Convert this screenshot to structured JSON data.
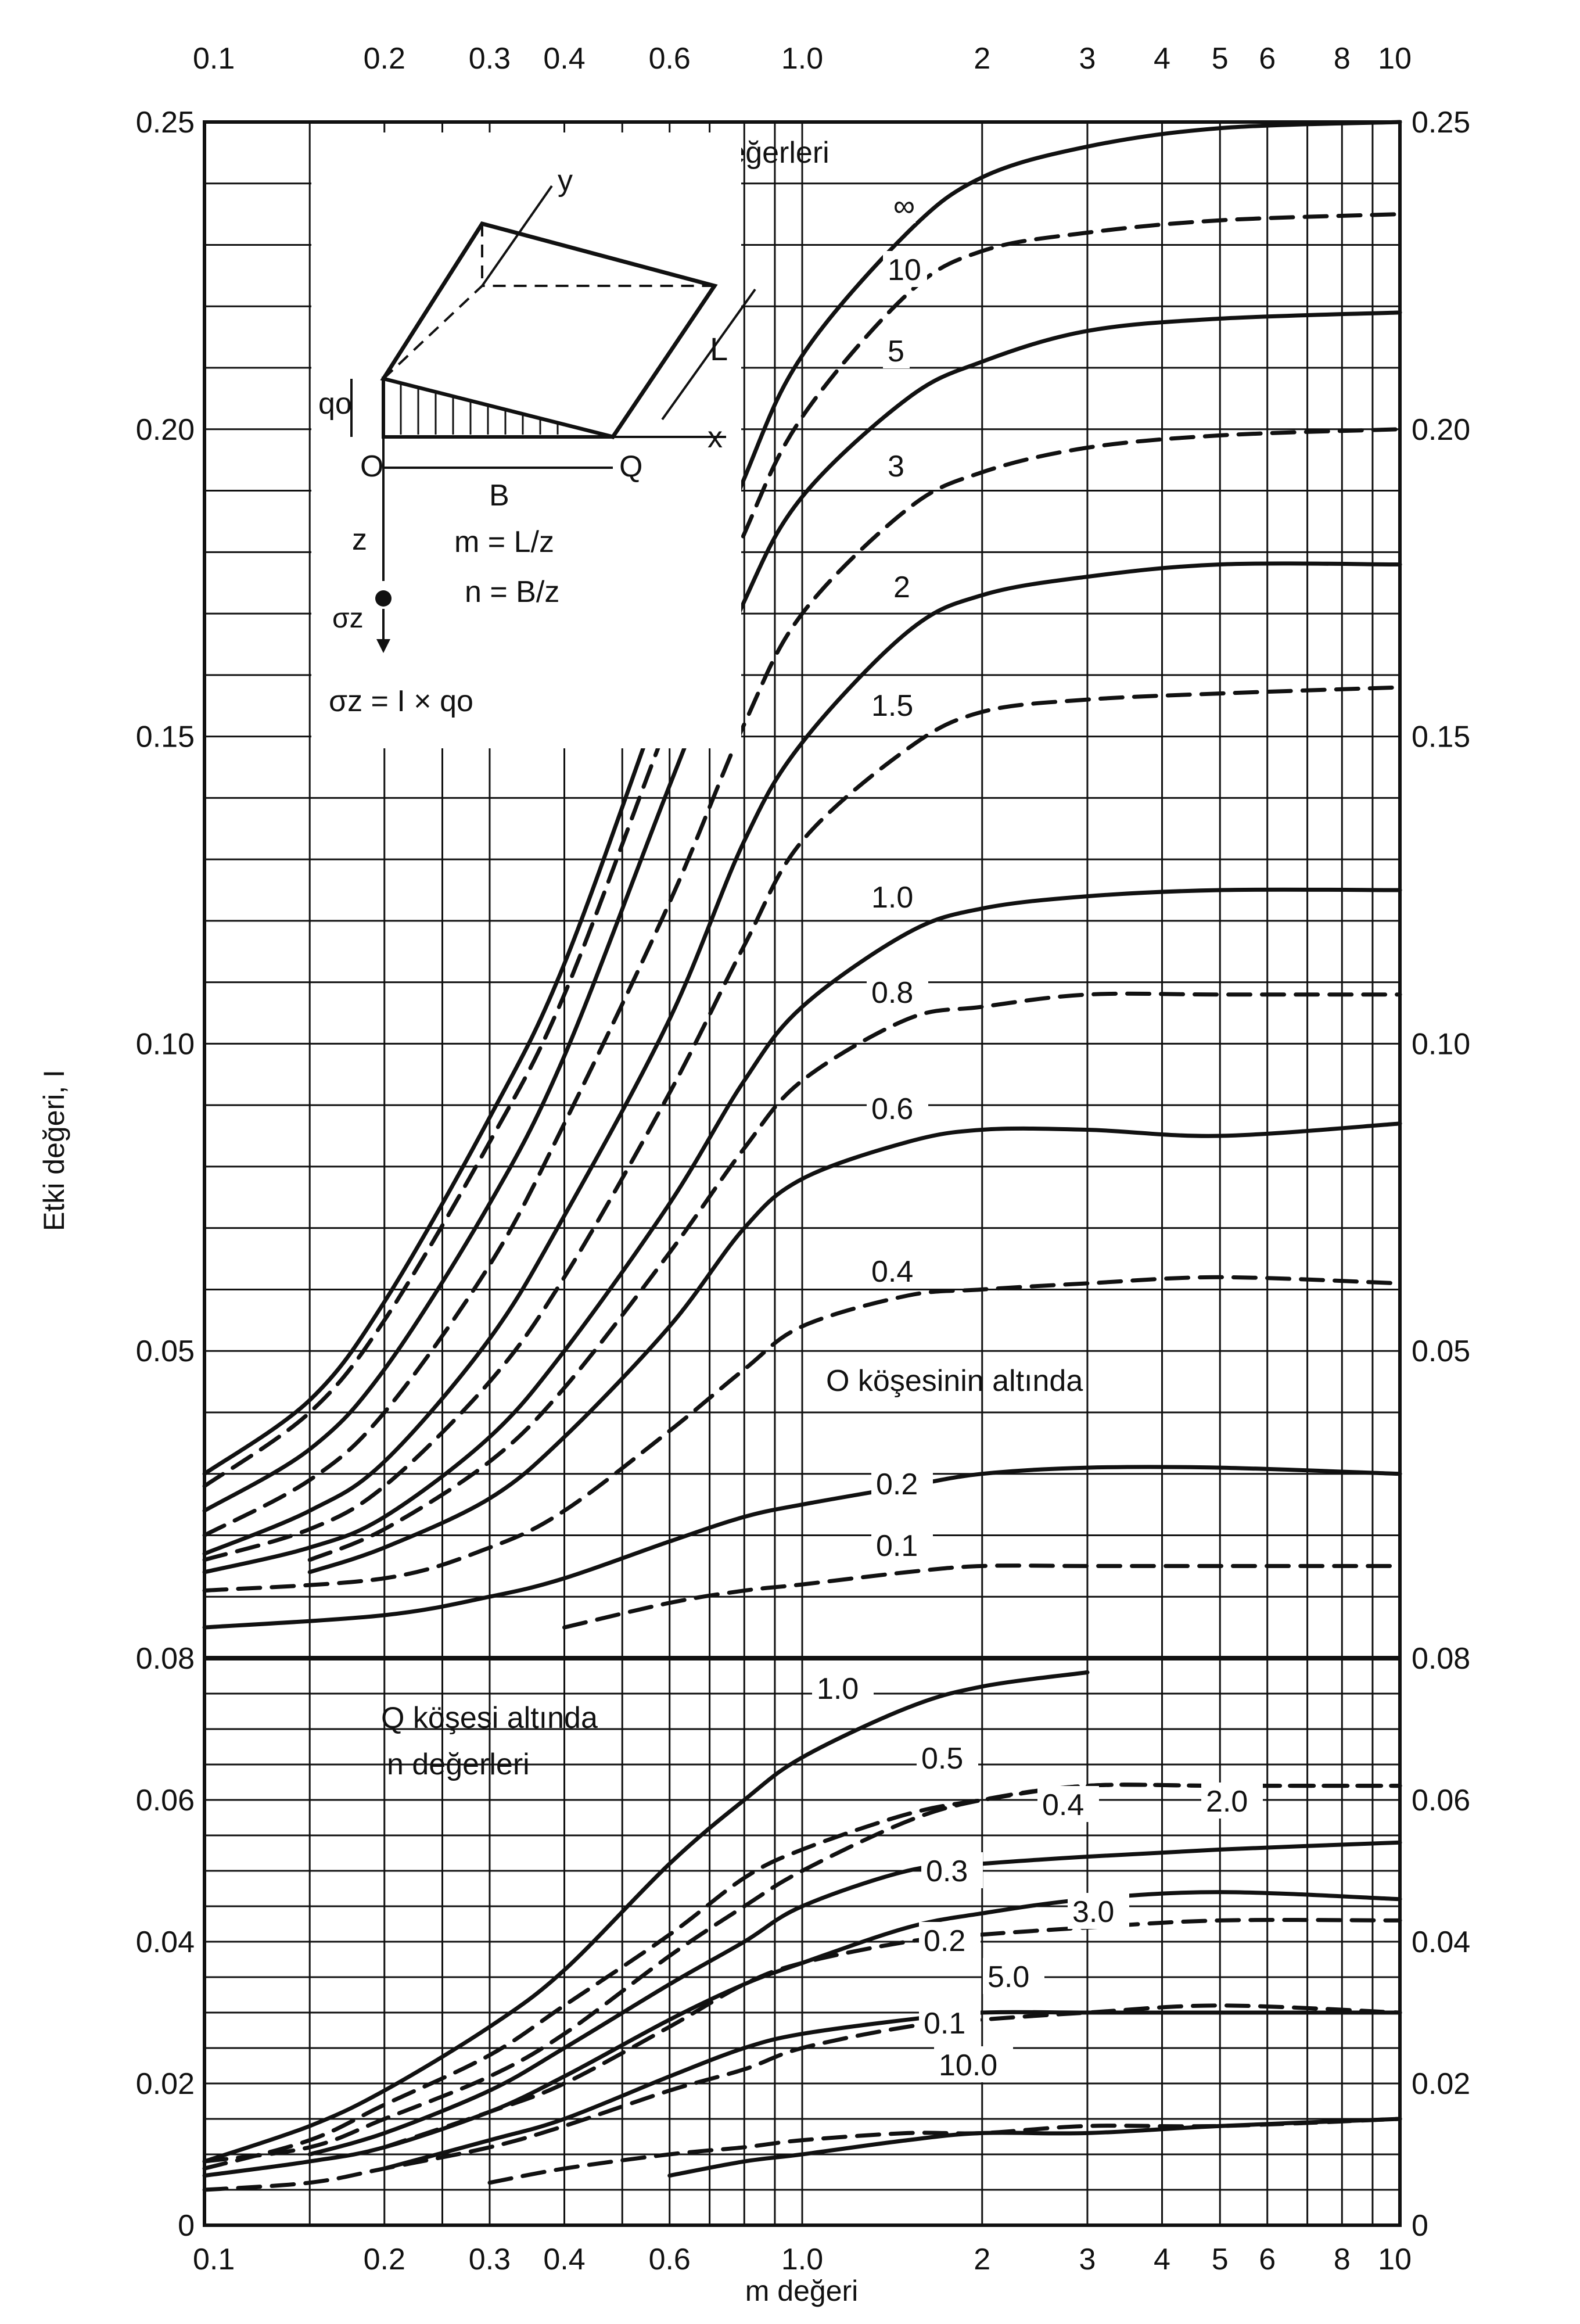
{
  "chart_data": {
    "type": "line",
    "title": "",
    "xlabel": "m değeri",
    "ylabel": "Etki değeri, I",
    "x_scale": "log",
    "xlim": [
      0.1,
      10
    ],
    "x_ticks": [
      0.1,
      0.2,
      0.3,
      0.4,
      0.6,
      1.0,
      2,
      3,
      4,
      5,
      6,
      8,
      10
    ],
    "x_tick_labels": [
      "0.1",
      "0.2",
      "0.3",
      "0.4",
      "0.6",
      "1.0",
      "2",
      "3",
      "4",
      "5",
      "6",
      "8",
      "10"
    ],
    "grid": true,
    "panels": [
      {
        "id": "upper",
        "caption": "O köşesinin altında",
        "legend_title": "n değerleri",
        "ylim": [
          0,
          0.25
        ],
        "y_tick_values": [
          0.05,
          0.1,
          0.15,
          0.2,
          0.25
        ],
        "y_tick_labels": [
          "0.05",
          "0.10",
          "0.15",
          "0.20",
          "0.25"
        ],
        "series": [
          {
            "name": "∞",
            "dashed": false,
            "x": [
              0.1,
              0.15,
              0.2,
              0.3,
              0.4,
              0.6,
              0.8,
              1.0,
              1.5,
              2,
              3,
              5,
              10
            ],
            "y": [
              0.03,
              0.042,
              0.058,
              0.088,
              0.113,
              0.16,
              0.192,
              0.212,
              0.232,
              0.241,
              0.246,
              0.249,
              0.25
            ]
          },
          {
            "name": "10",
            "dashed": true,
            "x": [
              0.1,
              0.15,
              0.2,
              0.3,
              0.4,
              0.6,
              0.8,
              1.0,
              1.5,
              2,
              3,
              5,
              10
            ],
            "y": [
              0.028,
              0.04,
              0.055,
              0.084,
              0.108,
              0.153,
              0.183,
              0.202,
              0.222,
              0.229,
              0.232,
              0.234,
              0.235
            ]
          },
          {
            "name": "5",
            "dashed": false,
            "x": [
              0.1,
              0.15,
              0.2,
              0.3,
              0.4,
              0.6,
              0.8,
              1.0,
              1.5,
              2,
              3,
              5,
              10
            ],
            "y": [
              0.024,
              0.034,
              0.047,
              0.074,
              0.098,
              0.142,
              0.172,
              0.189,
              0.205,
              0.211,
              0.216,
              0.218,
              0.219
            ]
          },
          {
            "name": "3",
            "dashed": true,
            "x": [
              0.1,
              0.15,
              0.2,
              0.3,
              0.4,
              0.6,
              0.8,
              1.0,
              1.5,
              2,
              3,
              5,
              10
            ],
            "y": [
              0.02,
              0.029,
              0.04,
              0.064,
              0.087,
              0.123,
              0.152,
              0.17,
              0.187,
              0.193,
              0.197,
              0.199,
              0.2
            ]
          },
          {
            "name": "2",
            "dashed": false,
            "x": [
              0.1,
              0.15,
              0.2,
              0.3,
              0.4,
              0.6,
              0.8,
              1.0,
              1.5,
              2,
              3,
              5,
              10
            ],
            "y": [
              0.017,
              0.024,
              0.032,
              0.052,
              0.072,
              0.104,
              0.133,
              0.149,
              0.167,
              0.173,
              0.176,
              0.178,
              0.178
            ]
          },
          {
            "name": "1.5",
            "dashed": true,
            "x": [
              0.1,
              0.15,
              0.2,
              0.3,
              0.4,
              0.6,
              0.8,
              1.0,
              1.5,
              2,
              3,
              5,
              10
            ],
            "y": [
              0.016,
              0.021,
              0.028,
              0.045,
              0.062,
              0.092,
              0.116,
              0.133,
              0.148,
              0.154,
              0.156,
              0.157,
              0.158
            ]
          },
          {
            "name": "1.0",
            "dashed": false,
            "x": [
              0.1,
              0.15,
              0.2,
              0.3,
              0.4,
              0.6,
              0.8,
              1.0,
              1.5,
              2,
              3,
              5,
              10
            ],
            "y": [
              0.014,
              0.018,
              0.023,
              0.036,
              0.05,
              0.074,
              0.094,
              0.106,
              0.118,
              0.122,
              0.124,
              0.125,
              0.125
            ]
          },
          {
            "name": "0.8",
            "dashed": true,
            "x": [
              0.15,
              0.2,
              0.3,
              0.4,
              0.6,
              0.8,
              1.0,
              1.5,
              2,
              3,
              5,
              10
            ],
            "y": [
              0.016,
              0.021,
              0.032,
              0.044,
              0.066,
              0.083,
              0.094,
              0.104,
              0.106,
              0.108,
              0.108,
              0.108
            ]
          },
          {
            "name": "0.6",
            "dashed": false,
            "x": [
              0.15,
              0.2,
              0.3,
              0.4,
              0.6,
              0.8,
              1.0,
              1.5,
              2,
              3,
              5,
              10
            ],
            "y": [
              0.014,
              0.018,
              0.026,
              0.036,
              0.054,
              0.07,
              0.078,
              0.084,
              0.086,
              0.086,
              0.085,
              0.087
            ]
          },
          {
            "name": "0.4",
            "dashed": true,
            "x": [
              0.1,
              0.2,
              0.3,
              0.4,
              0.6,
              0.8,
              1.0,
              1.5,
              2,
              3,
              5,
              10
            ],
            "y": [
              0.011,
              0.013,
              0.018,
              0.024,
              0.037,
              0.047,
              0.054,
              0.059,
              0.06,
              0.061,
              0.062,
              0.061
            ]
          },
          {
            "name": "0.2",
            "dashed": false,
            "x": [
              0.1,
              0.2,
              0.3,
              0.4,
              0.6,
              0.8,
              1.0,
              1.5,
              2,
              3,
              5,
              10
            ],
            "y": [
              0.005,
              0.007,
              0.01,
              0.013,
              0.019,
              0.023,
              0.025,
              0.028,
              0.03,
              0.031,
              0.031,
              0.03
            ]
          },
          {
            "name": "0.1",
            "dashed": true,
            "x": [
              0.4,
              0.6,
              0.8,
              1.0,
              1.5,
              2,
              3,
              5,
              10
            ],
            "y": [
              0.005,
              0.009,
              0.011,
              0.012,
              0.014,
              0.015,
              0.015,
              0.015,
              0.015
            ]
          }
        ]
      },
      {
        "id": "lower",
        "caption": "Q köşesi altında",
        "legend_title": "n değerleri",
        "ylim": [
          0,
          0.08
        ],
        "y_tick_values": [
          0,
          0.02,
          0.04,
          0.06,
          0.08
        ],
        "y_tick_labels": [
          "0",
          "0.02",
          "0.04",
          "0.06",
          "0.08"
        ],
        "series": [
          {
            "name": "1.0",
            "dashed": false,
            "x": [
              0.1,
              0.15,
              0.2,
              0.3,
              0.4,
              0.6,
              0.8,
              1.0,
              1.5,
              2,
              3
            ],
            "y": [
              0.009,
              0.014,
              0.019,
              0.028,
              0.036,
              0.051,
              0.06,
              0.066,
              0.073,
              0.076,
              0.078
            ]
          },
          {
            "name": "0.5",
            "dashed": true,
            "x": [
              0.1,
              0.15,
              0.2,
              0.3,
              0.4,
              0.6,
              0.8,
              1.0,
              1.5,
              2,
              3,
              5,
              10
            ],
            "y": [
              0.008,
              0.012,
              0.017,
              0.024,
              0.031,
              0.041,
              0.049,
              0.053,
              0.058,
              0.06,
              0.062,
              0.062,
              0.062
            ]
          },
          {
            "name": "0.4",
            "dashed": false,
            "x": [
              0.15,
              0.2,
              0.3,
              0.4,
              0.6,
              0.8,
              1.0,
              1.5,
              2,
              3,
              5,
              10
            ],
            "y": [
              0.01,
              0.013,
              0.019,
              0.025,
              0.034,
              0.04,
              0.045,
              0.05,
              0.051,
              0.052,
              0.053,
              0.054
            ]
          },
          {
            "name": "0.3",
            "dashed": true,
            "x": [
              0.2,
              0.3,
              0.4,
              0.6,
              0.8,
              1.0,
              1.5,
              2,
              3,
              5,
              10
            ],
            "y": [
              0.011,
              0.016,
              0.02,
              0.028,
              0.034,
              0.037,
              0.04,
              0.041,
              0.042,
              0.043,
              0.043
            ]
          },
          {
            "name": "0.2",
            "dashed": false,
            "x": [
              0.2,
              0.3,
              0.4,
              0.6,
              0.8,
              1.0,
              1.5,
              2,
              3,
              5,
              10
            ],
            "y": [
              0.008,
              0.012,
              0.015,
              0.021,
              0.025,
              0.027,
              0.029,
              0.03,
              0.03,
              0.03,
              0.03
            ]
          },
          {
            "name": "0.1",
            "dashed": true,
            "x": [
              0.3,
              0.4,
              0.6,
              0.8,
              1.0,
              1.5,
              2,
              3,
              5,
              10
            ],
            "y": [
              0.006,
              0.008,
              0.01,
              0.011,
              0.012,
              0.013,
              0.013,
              0.014,
              0.014,
              0.015
            ]
          },
          {
            "name": "2.0",
            "dashed": true,
            "x": [
              0.1,
              0.15,
              0.2,
              0.3,
              0.4,
              0.6,
              0.8,
              1.0,
              1.5,
              2,
              3,
              5,
              10
            ],
            "y": [
              0.009,
              0.011,
              0.015,
              0.021,
              0.027,
              0.038,
              0.045,
              0.05,
              0.057,
              0.06,
              0.062,
              0.062,
              0.062
            ]
          },
          {
            "name": "3.0",
            "dashed": false,
            "x": [
              0.1,
              0.15,
              0.2,
              0.3,
              0.4,
              0.6,
              0.8,
              1.0,
              1.5,
              2,
              3,
              5,
              10
            ],
            "y": [
              0.007,
              0.009,
              0.011,
              0.016,
              0.021,
              0.029,
              0.034,
              0.037,
              0.042,
              0.044,
              0.046,
              0.047,
              0.046
            ]
          },
          {
            "name": "5.0",
            "dashed": true,
            "x": [
              0.1,
              0.15,
              0.2,
              0.3,
              0.4,
              0.6,
              0.8,
              1.0,
              1.5,
              2,
              3,
              5,
              10
            ],
            "y": [
              0.005,
              0.006,
              0.008,
              0.011,
              0.014,
              0.019,
              0.022,
              0.025,
              0.028,
              0.029,
              0.03,
              0.031,
              0.03
            ]
          },
          {
            "name": "10.0",
            "dashed": false,
            "x": [
              0.6,
              0.8,
              1.0,
              1.5,
              2,
              3,
              5,
              10
            ],
            "y": [
              0.007,
              0.009,
              0.01,
              0.012,
              0.013,
              0.013,
              0.014,
              0.015
            ]
          }
        ]
      }
    ],
    "inset": {
      "formula_m": "m = L/z",
      "formula_n": "n = B/z",
      "formula_sigma": "σz = I × qo",
      "label_y": "y",
      "label_x": "x",
      "label_z": "z",
      "label_L": "L",
      "label_B": "B",
      "label_O": "O",
      "label_Q": "Q",
      "label_q": "qo",
      "label_sigma": "σz"
    }
  }
}
